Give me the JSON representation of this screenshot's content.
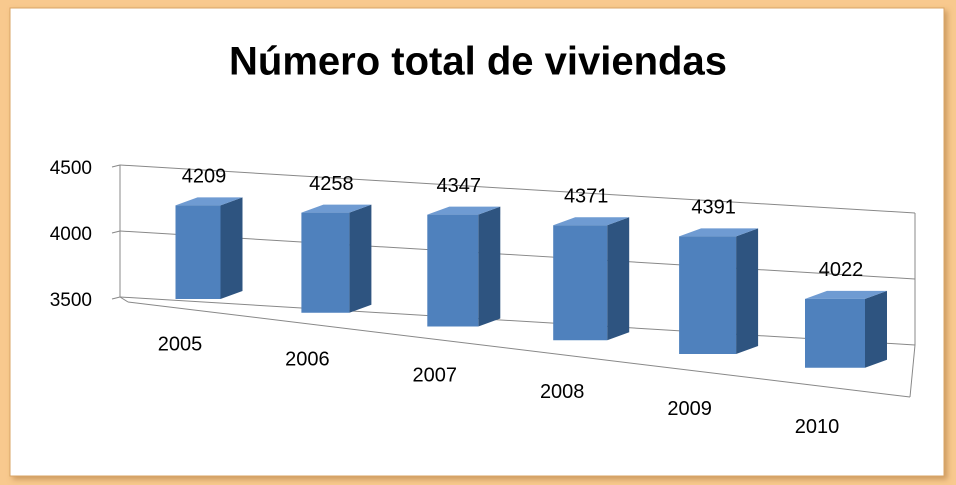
{
  "chart_data": {
    "type": "bar",
    "title": "Número total de viviendas",
    "categories": [
      "2005",
      "2006",
      "2007",
      "2008",
      "2009",
      "2010"
    ],
    "values": [
      4209,
      4258,
      4347,
      4371,
      4391,
      4022
    ],
    "color": "#4f81bd",
    "ylim": [
      3500,
      4500
    ],
    "yticks": [
      3500,
      4000,
      4500
    ],
    "grid": true
  }
}
